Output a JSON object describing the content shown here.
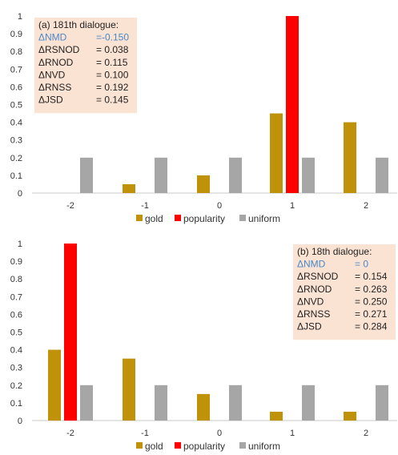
{
  "colors": {
    "gold": "#c0920a",
    "popularity": "#ff0000",
    "uniform": "#a6a6a6",
    "annotation_bg": "#fbe3d4",
    "highlight_text": "#4a88c8",
    "axis": "#c8c8c8"
  },
  "legend_labels": [
    "gold",
    "popularity",
    "uniform"
  ],
  "chart_data": [
    {
      "type": "bar",
      "categories": [
        "-2",
        "-1",
        "0",
        "1",
        "2"
      ],
      "series": [
        {
          "name": "gold",
          "values": [
            0,
            0.05,
            0.1,
            0.45,
            0.4
          ]
        },
        {
          "name": "popularity",
          "values": [
            0,
            0,
            0,
            1.0,
            0
          ]
        },
        {
          "name": "uniform",
          "values": [
            0.2,
            0.2,
            0.2,
            0.2,
            0.2
          ]
        }
      ],
      "ylim": [
        0,
        1
      ],
      "yticks": [
        "0",
        "0.1",
        "0.2",
        "0.3",
        "0.4",
        "0.5",
        "0.6",
        "0.7",
        "0.8",
        "0.9",
        "1"
      ],
      "legend": "bottom",
      "grid": false,
      "annotation": {
        "placement": "top-left",
        "title": "(a) 181th dialogue:",
        "rows": [
          {
            "label": "ΔNMD",
            "value": "=-0.150",
            "highlight": true
          },
          {
            "label": "ΔRSNOD",
            "value": "= 0.038",
            "highlight": false
          },
          {
            "label": "ΔRNOD",
            "value": "= 0.115",
            "highlight": false
          },
          {
            "label": "ΔNVD",
            "value": "= 0.100",
            "highlight": false
          },
          {
            "label": "ΔRNSS",
            "value": "= 0.192",
            "highlight": false
          },
          {
            "label": "ΔJSD",
            "value": "= 0.145",
            "highlight": false
          }
        ]
      }
    },
    {
      "type": "bar",
      "categories": [
        "-2",
        "-1",
        "0",
        "1",
        "2"
      ],
      "series": [
        {
          "name": "gold",
          "values": [
            0.4,
            0.35,
            0.15,
            0.05,
            0.05
          ]
        },
        {
          "name": "popularity",
          "values": [
            1.0,
            0,
            0,
            0,
            0
          ]
        },
        {
          "name": "uniform",
          "values": [
            0.2,
            0.2,
            0.2,
            0.2,
            0.2
          ]
        }
      ],
      "ylim": [
        0,
        1
      ],
      "yticks": [
        "0",
        "0.1",
        "0.2",
        "0.3",
        "0.4",
        "0.5",
        "0.6",
        "0.7",
        "0.8",
        "0.9",
        "1"
      ],
      "legend": "bottom",
      "grid": false,
      "annotation": {
        "placement": "top-right",
        "title": "(b) 18th dialogue:",
        "rows": [
          {
            "label": "ΔNMD",
            "value": "= 0",
            "highlight": true
          },
          {
            "label": "ΔRSNOD",
            "value": "= 0.154",
            "highlight": false
          },
          {
            "label": "ΔRNOD",
            "value": "= 0.263",
            "highlight": false
          },
          {
            "label": "ΔNVD",
            "value": "= 0.250",
            "highlight": false
          },
          {
            "label": "ΔRNSS",
            "value": "= 0.271",
            "highlight": false
          },
          {
            "label": "ΔJSD",
            "value": "= 0.284",
            "highlight": false
          }
        ]
      }
    }
  ]
}
